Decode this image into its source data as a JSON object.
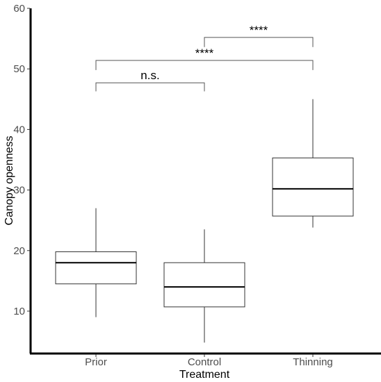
{
  "chart_data": {
    "type": "box",
    "title": "",
    "xlabel": "Treatment",
    "ylabel": "Canopy openness",
    "ylim": [
      3,
      60
    ],
    "yticks": [
      10,
      20,
      30,
      40,
      50,
      60
    ],
    "grid": false,
    "categories": [
      "Prior",
      "Control",
      "Thinning"
    ],
    "boxes": [
      {
        "category": "Prior",
        "min": 9.0,
        "q1": 14.5,
        "median": 18.0,
        "q3": 19.8,
        "max": 27.0
      },
      {
        "category": "Control",
        "min": 4.8,
        "q1": 10.7,
        "median": 14.0,
        "q3": 18.0,
        "max": 23.5
      },
      {
        "category": "Thinning",
        "min": 23.8,
        "q1": 25.7,
        "median": 30.2,
        "q3": 35.3,
        "max": 45.0
      }
    ],
    "comparisons": [
      {
        "from": "Prior",
        "to": "Control",
        "label": "n.s.",
        "y": 47.7,
        "tip": 46.3
      },
      {
        "from": "Prior",
        "to": "Thinning",
        "label": "****",
        "y": 51.4,
        "tip": 49.8
      },
      {
        "from": "Control",
        "to": "Thinning",
        "label": "****",
        "y": 55.2,
        "tip": 53.6
      }
    ]
  }
}
